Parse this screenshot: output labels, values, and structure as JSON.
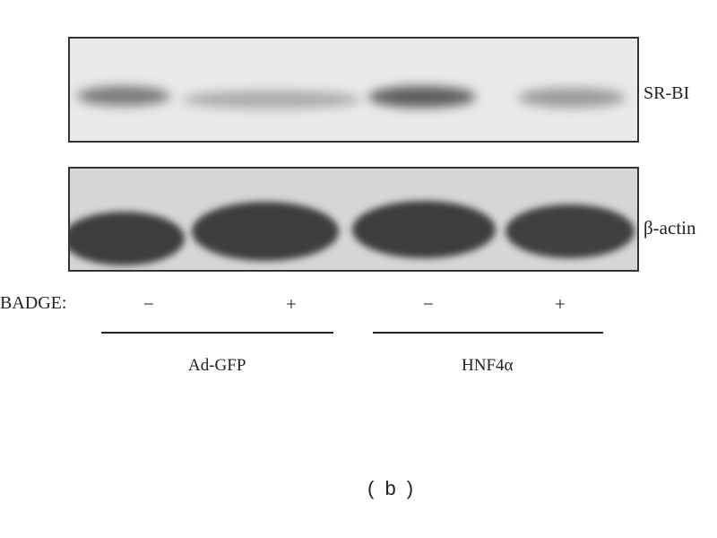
{
  "blots": [
    {
      "label": "SR-BI",
      "band_intensity": [
        "medium",
        "weak",
        "strong",
        "weak"
      ]
    },
    {
      "label": "β-actin",
      "band_intensity": [
        "strong",
        "strong",
        "strong",
        "strong"
      ]
    }
  ],
  "treatment": {
    "label": "BADGE:",
    "lanes": [
      "−",
      "+",
      "−",
      "+"
    ]
  },
  "groups": [
    "Ad-GFP",
    "HNF4α"
  ],
  "panel_label": "( b )",
  "colors": {
    "band": "#3c3c3c",
    "membrane_top": "#e9e9e9",
    "membrane_bottom": "#d6d6d6"
  }
}
